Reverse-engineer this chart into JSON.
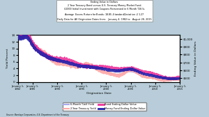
{
  "title_line1": "Ending Value in Dollars",
  "title_line2": "2 Year Treasury Bond versus U.S. Treasury Money Market Fund.",
  "title_line3": "$1000 Initial Investment with Coupons Reinvested in 6 Month T-Bills.",
  "title_line4": "Average Excess Return for Bonds: $18.85, Standard Deviation: $21.27",
  "title_line5": "Daily Data for All Origination Dates from:   January 4, 1982 to   August 28, 2015",
  "xlabel": "Origination Date",
  "ylabel_left": "Yield Percent",
  "ylabel_right": "Ending Value in Dollars",
  "background_color": "#b8cdd9",
  "plot_bg": "#ffffff",
  "source": "Source: Barclays Corporation, U.S. Department of the Treasury",
  "legend": [
    {
      "label": "6-Month T-bill Yield",
      "color": "#aaaaee",
      "lw": 1.2
    },
    {
      "label": "2-Year Treasury Yield",
      "color": "#ffaaaa",
      "lw": 1.2
    },
    {
      "label": "Bond Ending Dollar Value",
      "color": "#ee3399",
      "lw": 1.5
    },
    {
      "label": "Money Fund Ending Dollar Value",
      "color": "#2222aa",
      "lw": 1.5
    }
  ],
  "ylim_left": [
    0,
    14
  ],
  "ylim_right": [
    450,
    1050
  ],
  "yticks_left": [
    0,
    2,
    4,
    6,
    8,
    10,
    12,
    14
  ],
  "yticks_right": [
    500,
    600,
    700,
    800,
    900,
    1000
  ],
  "xtick_years": [
    1982,
    1985,
    1990,
    1995,
    2000,
    2005,
    2010,
    2015
  ],
  "date_start": 1982,
  "date_end": 2015
}
